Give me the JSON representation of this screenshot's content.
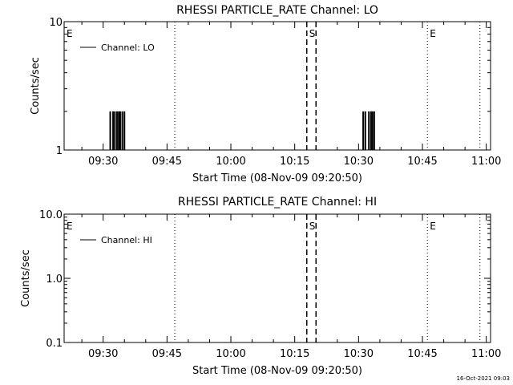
{
  "footer": {
    "timestamp": "16-Oct-2021 09:03"
  },
  "chart_data": [
    {
      "type": "line",
      "title": "RHESSI PARTICLE_RATE Channel: LO",
      "xlabel": "Start Time (08-Nov-09 09:20:50)",
      "ylabel": "Counts/sec",
      "yscale": "log",
      "ylim": [
        1,
        10
      ],
      "ytick_labels": [
        {
          "value": 1,
          "label": "1"
        },
        {
          "value": 10,
          "label": "10"
        }
      ],
      "xlim_seconds_from_start": [
        0,
        6010
      ],
      "xticks": [
        {
          "label": "09:30",
          "t": 550
        },
        {
          "label": "09:45",
          "t": 1450
        },
        {
          "label": "10:00",
          "t": 2350
        },
        {
          "label": "10:15",
          "t": 3250
        },
        {
          "label": "10:30",
          "t": 4150
        },
        {
          "label": "10:45",
          "t": 5050
        },
        {
          "label": "11:00",
          "t": 5950
        }
      ],
      "legend": {
        "position": "top-left",
        "entries": [
          "Channel: LO"
        ]
      },
      "series": [
        {
          "name": "Channel: LO",
          "x": [
            650,
            690,
            715,
            745,
            770,
            790,
            820,
            850,
            4215,
            4245,
            4295,
            4325,
            4345,
            4370
          ],
          "values": [
            2,
            2,
            2,
            2,
            2,
            2,
            2,
            2,
            2,
            2,
            2,
            2,
            2,
            2
          ]
        }
      ],
      "markers": [
        {
          "label": "E",
          "t": 0,
          "style": "none"
        },
        {
          "label": "",
          "t": 1560,
          "style": "dotted"
        },
        {
          "label": "S",
          "t": 3420,
          "style": "dashed"
        },
        {
          "label": "",
          "t": 3550,
          "style": "dashed"
        },
        {
          "label": "E",
          "t": 5120,
          "style": "dotted"
        },
        {
          "label": "",
          "t": 5860,
          "style": "dotted"
        }
      ]
    },
    {
      "type": "line",
      "title": "RHESSI PARTICLE_RATE Channel: HI",
      "xlabel": "Start Time (08-Nov-09 09:20:50)",
      "ylabel": "Counts/sec",
      "yscale": "log",
      "ylim": [
        0.1,
        10
      ],
      "ytick_labels": [
        {
          "value": 0.1,
          "label": "0.1"
        },
        {
          "value": 1,
          "label": "1.0"
        },
        {
          "value": 10,
          "label": "10.0"
        }
      ],
      "xlim_seconds_from_start": [
        0,
        6010
      ],
      "xticks": [
        {
          "label": "09:30",
          "t": 550
        },
        {
          "label": "09:45",
          "t": 1450
        },
        {
          "label": "10:00",
          "t": 2350
        },
        {
          "label": "10:15",
          "t": 3250
        },
        {
          "label": "10:30",
          "t": 4150
        },
        {
          "label": "10:45",
          "t": 5050
        },
        {
          "label": "11:00",
          "t": 5950
        }
      ],
      "legend": {
        "position": "top-left",
        "entries": [
          "Channel: HI"
        ]
      },
      "series": [
        {
          "name": "Channel: HI",
          "x": [],
          "values": []
        }
      ],
      "markers": [
        {
          "label": "E",
          "t": 0,
          "style": "none"
        },
        {
          "label": "",
          "t": 1560,
          "style": "dotted"
        },
        {
          "label": "S",
          "t": 3420,
          "style": "dashed"
        },
        {
          "label": "",
          "t": 3550,
          "style": "dashed"
        },
        {
          "label": "E",
          "t": 5120,
          "style": "dotted"
        },
        {
          "label": "",
          "t": 5860,
          "style": "dotted"
        }
      ]
    }
  ]
}
